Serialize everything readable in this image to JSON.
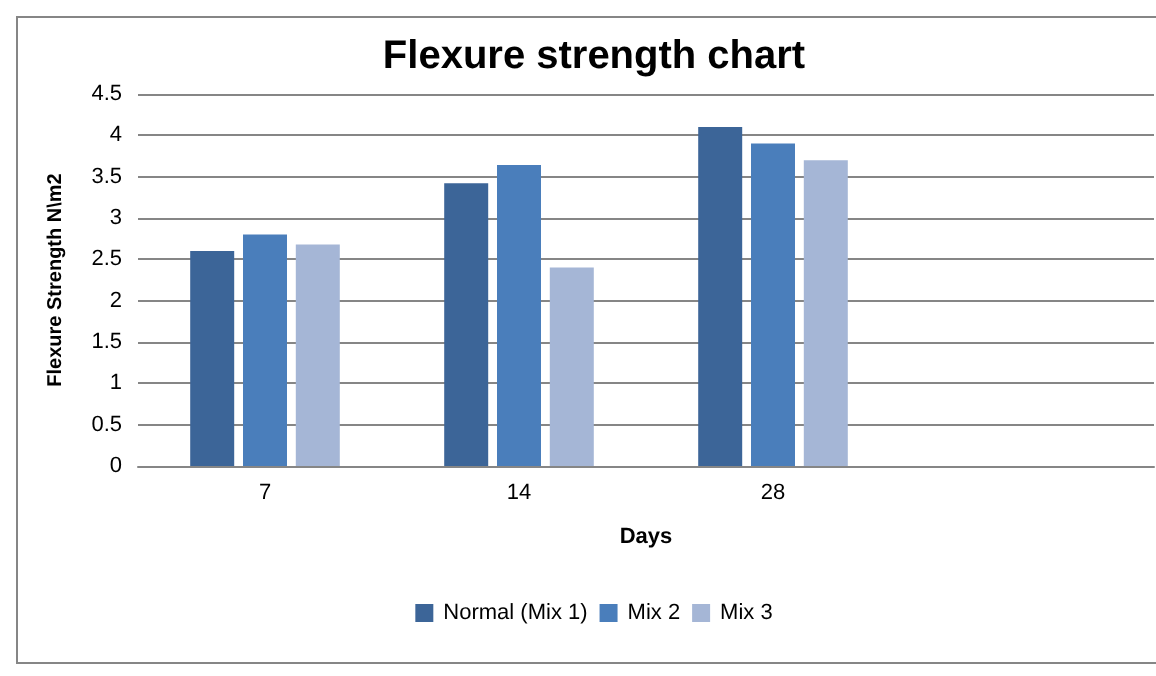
{
  "chart_data": {
    "type": "bar",
    "title": "Flexure strength chart",
    "xlabel": "Days",
    "ylabel": "Flexure Strength N\\m2",
    "categories": [
      "7",
      "14",
      "28",
      null
    ],
    "series": [
      {
        "name": "Normal (Mix 1)",
        "color": "#3c6598",
        "values": [
          2.6,
          3.42,
          4.1,
          null
        ]
      },
      {
        "name": "Mix 2",
        "color": "#4a7ebb",
        "values": [
          2.8,
          3.64,
          3.9,
          null
        ]
      },
      {
        "name": "Mix 3",
        "color": "#a5b6d6",
        "values": [
          2.68,
          2.4,
          3.7,
          null
        ]
      }
    ],
    "ylim": [
      0,
      4.5
    ],
    "yticks": [
      0,
      0.5,
      1,
      1.5,
      2,
      2.5,
      3,
      3.5,
      4,
      4.5
    ],
    "grid": "y",
    "legend": "bottom"
  }
}
